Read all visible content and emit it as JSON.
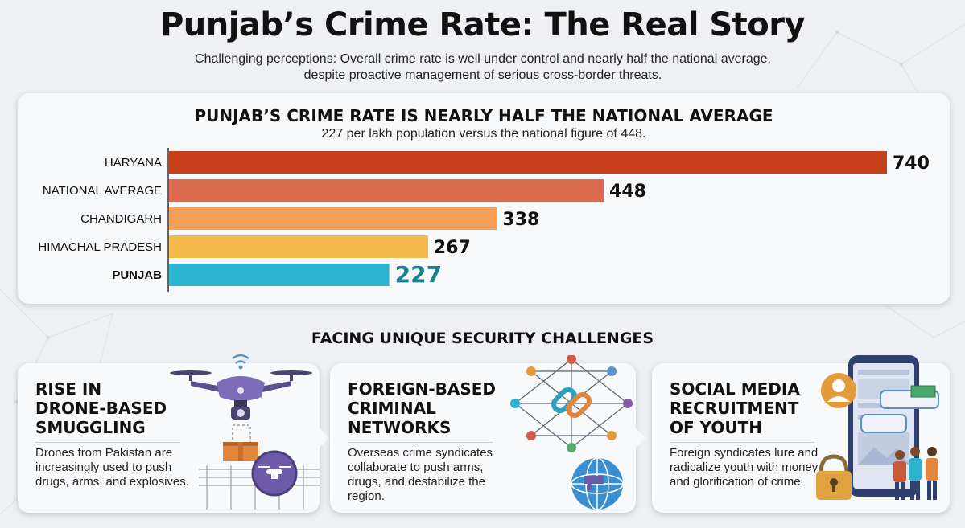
{
  "header": {
    "title": "Punjab’s Crime Rate: The Real Story",
    "subtitle": "Challenging perceptions: Overall crime rate is well under control and nearly half the national average, despite proactive management of serious cross-border threats."
  },
  "chart_data": {
    "type": "bar",
    "orientation": "horizontal",
    "title": "PUNJAB’S CRIME RATE IS NEARLY HALF THE NATIONAL AVERAGE",
    "subtitle": "227 per lakh population versus the national figure of 448.",
    "categories": [
      "HARYANA",
      "NATIONAL AVERAGE",
      "CHANDIGARH",
      "HIMACHAL PRADESH",
      "PUNJAB"
    ],
    "values": [
      740,
      448,
      338,
      267,
      227
    ],
    "colors": [
      "#c8401a",
      "#dc6a4e",
      "#f5a05a",
      "#f5b84a",
      "#2bb3cf"
    ],
    "label_colors": [
      "#111111",
      "#111111",
      "#111111",
      "#111111",
      "#1f7f8e"
    ],
    "highlight": "PUNJAB",
    "xlim": [
      0,
      740
    ],
    "grid": false,
    "legend": "none"
  },
  "section": {
    "title": "FACING UNIQUE SECURITY CHALLENGES"
  },
  "cards": [
    {
      "title": "RISE IN\nDRONE-BASED\nSMUGGLING",
      "text": "Drones from Pakistan are increasingly used to push drugs, arms, and explosives.",
      "icon": "drone-icon"
    },
    {
      "title": "FOREIGN-BASED\nCRIMINAL\nNETWORKS",
      "text": "Overseas crime syndicates collaborate to push arms, drugs, and destabilize the region.",
      "icon": "network-icon"
    },
    {
      "title": "SOCIAL MEDIA\nRECRUITMENT\nOF YOUTH",
      "text": "Foreign syndicates lure and radicalize youth with money and glorification of crime.",
      "icon": "phone-icon"
    }
  ]
}
